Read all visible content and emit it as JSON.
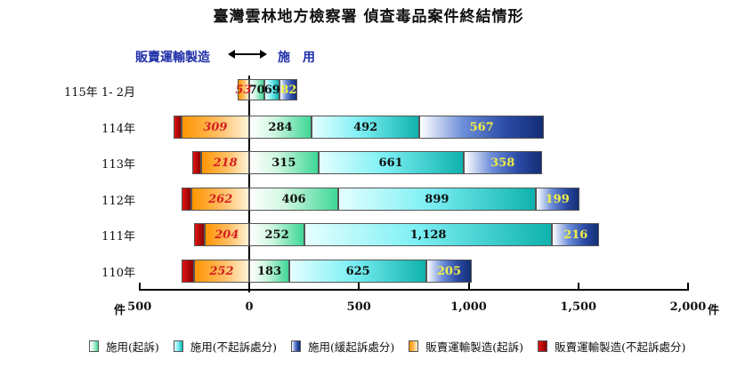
{
  "title": "臺灣雲林地方檢察署 偵查毒品案件終結情形",
  "direction": {
    "left_label": "販賣運輸製造",
    "arrow": "←→",
    "right_label": "施　用"
  },
  "axis": {
    "left_unit": "件",
    "right_unit": "件",
    "ticks": [
      {
        "value": -500,
        "label": "500"
      },
      {
        "value": 0,
        "label": "0"
      },
      {
        "value": 500,
        "label": "500"
      },
      {
        "value": 1000,
        "label": "1,000"
      },
      {
        "value": 1500,
        "label": "1,500"
      },
      {
        "value": 2000,
        "label": "2,000"
      }
    ]
  },
  "legend": [
    {
      "key": "use_indicted",
      "label": "施用(起訴)",
      "color": "#3ed796"
    },
    {
      "key": "use_not_indicted",
      "label": "施用(不起訴處分)",
      "color": "#2fd3d3"
    },
    {
      "key": "use_deferred",
      "label": "施用(緩起訴處分)",
      "color": "#2b4aa6"
    },
    {
      "key": "traffic_indicted",
      "label": "販賣運輸製造(起訴)",
      "color": "#ffa838"
    },
    {
      "key": "traffic_not_indicted",
      "label": "販賣運輸製造(不起訴處分)",
      "color": "#c00000"
    }
  ],
  "chart_data": {
    "type": "bar",
    "orientation": "horizontal-stacked-diverging",
    "title": "臺灣雲林地方檢察署 偵查毒品案件終結情形",
    "xlabel": "件",
    "ylabel": "",
    "xlim": [
      -500,
      2000
    ],
    "grid": false,
    "legend_position": "bottom",
    "categories": [
      "115年 1- 2月",
      "114年",
      "113年",
      "112年",
      "111年",
      "110年"
    ],
    "series": [
      {
        "name": "施用(起訴)",
        "side": "right",
        "values": [
          70,
          284,
          315,
          406,
          252,
          183
        ],
        "labels": [
          "70",
          "284",
          "315",
          "406",
          "252",
          "183"
        ]
      },
      {
        "name": "施用(不起訴處分)",
        "side": "right",
        "values": [
          69,
          492,
          661,
          899,
          1128,
          625
        ],
        "labels": [
          "69",
          "492",
          "661",
          "899",
          "1,128",
          "625"
        ]
      },
      {
        "name": "施用(緩起訴處分)",
        "side": "right",
        "values": [
          82,
          567,
          358,
          199,
          216,
          205
        ],
        "labels": [
          "82",
          "567",
          "358",
          "199",
          "216",
          "205"
        ]
      },
      {
        "name": "販賣運輸製造(起訴)",
        "side": "left",
        "values": [
          53,
          309,
          218,
          262,
          204,
          252
        ],
        "labels": [
          "53",
          "309",
          "218",
          "262",
          "204",
          "252"
        ]
      },
      {
        "name": "販賣運輸製造(不起訴處分)",
        "side": "left",
        "values": [
          0,
          36,
          40,
          45,
          48,
          57
        ],
        "labels": [
          "",
          "",
          "",
          "",
          "",
          ""
        ],
        "note": "unlabeled; estimated from bar width"
      }
    ]
  }
}
